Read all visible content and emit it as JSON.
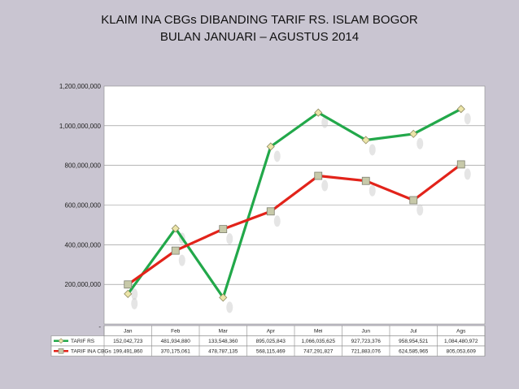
{
  "chart_data": {
    "type": "line",
    "title": "KLAIM INA CBGs DIBANDING TARIF RS. ISLAM BOGOR",
    "subtitle": "BULAN JANUARI – AGUSTUS 2014",
    "categories": [
      "Jan",
      "Feb",
      "Mar",
      "Apr",
      "Mei",
      "Jun",
      "Jul",
      "Ags"
    ],
    "y_ticks": [
      "1,200,000,000",
      "1,000,000,000",
      "800,000,000",
      "600,000,000",
      "400,000,000",
      "200,000,000",
      "-"
    ],
    "ylim": [
      0,
      1200000000
    ],
    "grid": true,
    "legend": "data-table",
    "series": [
      {
        "name": "TARIF RS",
        "color": "#22a84a",
        "values": [
          152042723,
          481934880,
          133548360,
          895025843,
          1066035625,
          927723376,
          958954521,
          1084480972
        ],
        "labels": [
          "152,042,723",
          "481,934,880",
          "133,548,360",
          "895,025,843",
          "1,066,035,625",
          "927,723,376",
          "958,954,521",
          "1,084,480,972"
        ]
      },
      {
        "name": "TARIF INA CBGs",
        "color": "#e2231a",
        "values": [
          199491860,
          370175061,
          478787135,
          568115469,
          747291827,
          721883076,
          624585965,
          805053609
        ],
        "labels": [
          "199,491,860",
          "370,175,061",
          "478,787,135",
          "568,115,469",
          "747,291,827",
          "721,883,076",
          "624,585,965",
          "805,053,609"
        ]
      }
    ]
  }
}
